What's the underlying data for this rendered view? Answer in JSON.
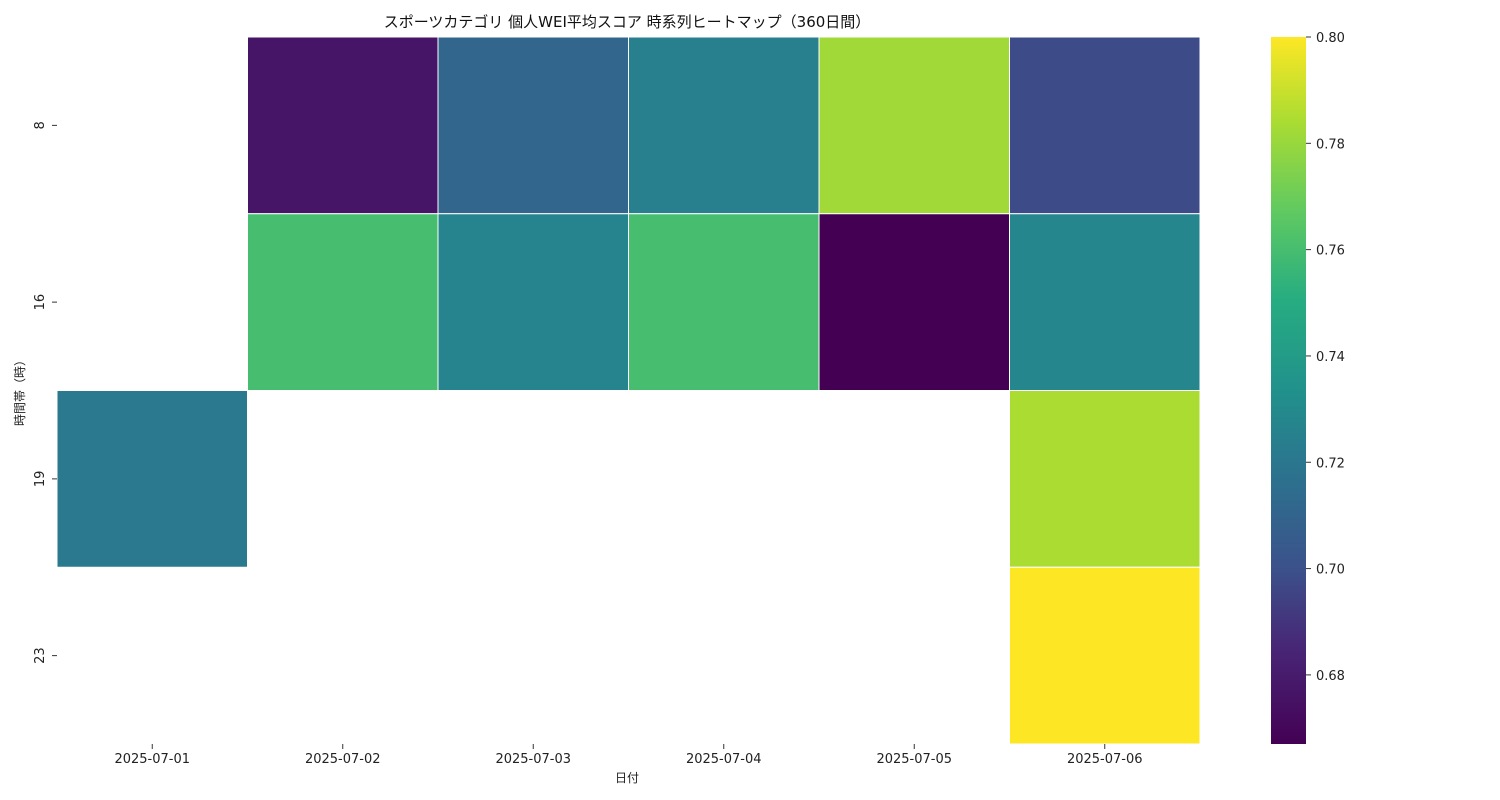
{
  "chart_data": {
    "type": "heatmap",
    "title": "スポーツカテゴリ 個人WEI平均スコア 時系列ヒートマップ（360日間）",
    "xlabel": "日付",
    "ylabel": "時間帯（時）",
    "x": [
      "2025-07-01",
      "2025-07-02",
      "2025-07-03",
      "2025-07-04",
      "2025-07-05",
      "2025-07-06"
    ],
    "y": [
      "8",
      "16",
      "19",
      "23"
    ],
    "values": [
      [
        null,
        0.677,
        0.711,
        0.724,
        0.782,
        0.698
      ],
      [
        null,
        0.76,
        0.727,
        0.76,
        0.667,
        0.728
      ],
      [
        0.721,
        null,
        null,
        null,
        null,
        0.784
      ],
      [
        null,
        null,
        null,
        null,
        null,
        0.8
      ]
    ],
    "colormap": "viridis",
    "colorbar": {
      "range": [
        0.667,
        0.8
      ],
      "ticks": [
        "0.68",
        "0.70",
        "0.72",
        "0.74",
        "0.76",
        "0.78",
        "0.80"
      ]
    },
    "missing_color": "#ffffff",
    "grid": false
  }
}
